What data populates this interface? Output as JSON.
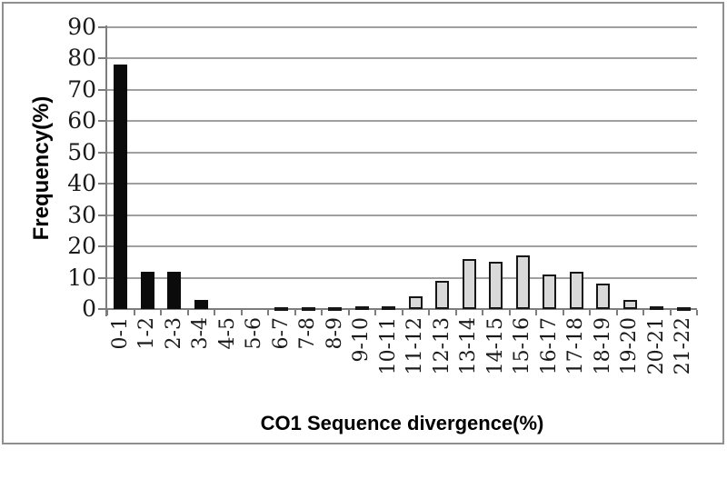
{
  "chart_data": {
    "type": "bar",
    "title": "",
    "xlabel": "CO1 Sequence divergence(%)",
    "ylabel": "Frequency(%)",
    "categories": [
      "0-1",
      "1-2",
      "2-3",
      "3-4",
      "4-5",
      "5-6",
      "6-7",
      "7-8",
      "8-9",
      "9-10",
      "10-11",
      "11-12",
      "12-13",
      "13-14",
      "14-15",
      "15-16",
      "16-17",
      "17-18",
      "18-19",
      "19-20",
      "20-21",
      "21-22"
    ],
    "values": [
      78,
      12,
      12,
      3,
      0,
      0,
      0.5,
      0.5,
      0.5,
      1,
      1,
      4,
      9,
      16,
      15,
      17,
      11,
      12,
      8,
      3,
      1,
      0.5
    ],
    "bar_styles": [
      "black",
      "black",
      "black",
      "black",
      "black",
      "black",
      "gray",
      "gray",
      "gray",
      "gray",
      "gray",
      "gray",
      "gray",
      "gray",
      "gray",
      "gray",
      "gray",
      "gray",
      "gray",
      "gray",
      "gray",
      "gray"
    ],
    "y_ticks": [
      0,
      10,
      20,
      30,
      40,
      50,
      60,
      70,
      80,
      90
    ],
    "ylim": [
      0,
      90
    ],
    "grid": "horizontal",
    "legend": "none"
  },
  "colors": {
    "background": "#ffffff",
    "frame_border": "#8f8f8f",
    "gridline": "#a0a0a0",
    "axis": "#7d7d7d",
    "black_bar": "#0b0b0b",
    "gray_bar": "#d9d9d9",
    "bar_border": "#161616",
    "text": "#000000"
  }
}
